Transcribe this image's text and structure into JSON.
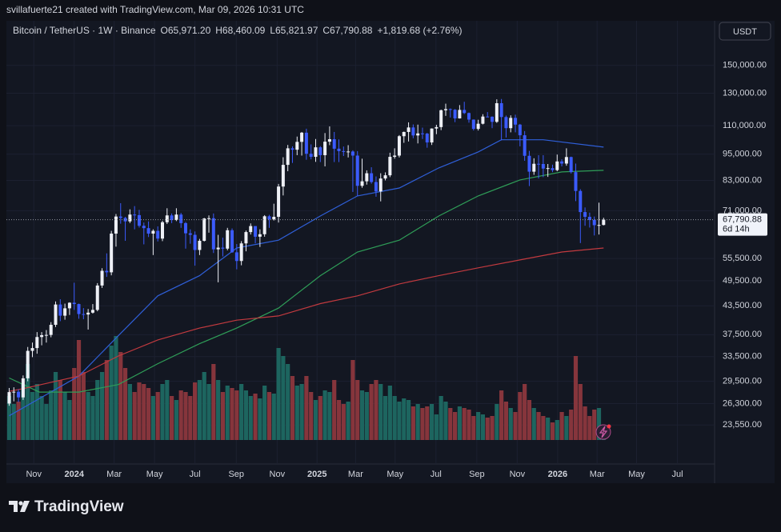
{
  "header": {
    "credit": "svillafuerte21 created with TradingView.com, Mar 09, 2026 10:31 UTC",
    "brand": "TradingView"
  },
  "chart_data": {
    "type": "candlestick",
    "symbol": "Bitcoin / TetherUS · 1W · Binance",
    "ohlc_text": [
      "O65,971.20",
      "H68,460.09",
      "L65,821.97",
      "C67,790.88",
      "+1,819.68 (+2.76%)"
    ],
    "currency": "USDT",
    "last_price_label": "67,790.88",
    "countdown": "6d 14h",
    "log_scale": true,
    "grid": true,
    "up_color": "#eef0f6",
    "down_color": "#3b5bfd",
    "volume_up_color": "#1d655f",
    "volume_down_color": "#86353c",
    "xlim": [
      -0.6,
      151.9
    ],
    "ylim": [
      21800,
      171000
    ],
    "xticks": [
      {
        "value": 5.3,
        "label": "Nov"
      },
      {
        "value": 14,
        "label": "2024"
      },
      {
        "value": 22.6,
        "label": "Mar"
      },
      {
        "value": 31.3,
        "label": "May"
      },
      {
        "value": 40,
        "label": "Jul"
      },
      {
        "value": 48.9,
        "label": "Sep"
      },
      {
        "value": 57.7,
        "label": "Nov"
      },
      {
        "value": 66.3,
        "label": "2025"
      },
      {
        "value": 74.6,
        "label": "Mar"
      },
      {
        "value": 83.1,
        "label": "May"
      },
      {
        "value": 91.9,
        "label": "Jul"
      },
      {
        "value": 100.7,
        "label": "Sep"
      },
      {
        "value": 109.4,
        "label": "Nov"
      },
      {
        "value": 118.1,
        "label": "2026"
      },
      {
        "value": 126.6,
        "label": "Mar"
      },
      {
        "value": 135.1,
        "label": "May"
      },
      {
        "value": 143.9,
        "label": "Jul"
      }
    ],
    "yticks": [
      {
        "value": 23550,
        "label": "23,550.00"
      },
      {
        "value": 26300,
        "label": "26,300.00"
      },
      {
        "value": 29500,
        "label": "29,500.00"
      },
      {
        "value": 33500,
        "label": "33,500.00"
      },
      {
        "value": 37500,
        "label": "37,500.00"
      },
      {
        "value": 43500,
        "label": "43,500.00"
      },
      {
        "value": 49500,
        "label": "49,500.00"
      },
      {
        "value": 55500,
        "label": "55,500.00"
      },
      {
        "value": 71000,
        "label": "71,000.00"
      },
      {
        "value": 83000,
        "label": "83,000.00"
      },
      {
        "value": 95000,
        "label": "95,000.00"
      },
      {
        "value": 110000,
        "label": "110,000.00"
      },
      {
        "value": 130000,
        "label": "130,000.00"
      },
      {
        "value": 150000,
        "label": "150,000.00"
      }
    ],
    "open": [
      26300,
      27900,
      27950,
      27150,
      29950,
      34500,
      35000,
      37050,
      37400,
      37450,
      39450,
      43800,
      41350,
      42950,
      44200,
      43900,
      41700,
      41600,
      42000,
      42600,
      48300,
      52100,
      51700,
      63100,
      68900,
      68400,
      67200,
      69600,
      69400,
      65700,
      64900,
      63100,
      64000,
      61500,
      66900,
      69300,
      67700,
      69600,
      66600,
      63200,
      62700,
      58000,
      60800,
      68200,
      68300,
      58200,
      58700,
      58400,
      64200,
      57300,
      54800,
      60000,
      63600,
      65600,
      62100,
      62900,
      69000,
      67900,
      68800,
      80400,
      89900,
      97900,
      97200,
      101200,
      106100,
      95200,
      93700,
      98400,
      94500,
      101300,
      102600,
      97700,
      96500,
      96100,
      96300,
      94300,
      80700,
      82600,
      86100,
      82300,
      78400,
      83800,
      85200,
      93700,
      94300,
      104200,
      106500,
      109000,
      104600,
      105700,
      105600,
      100900,
      108400,
      109200,
      119100,
      119800,
      119400,
      114200,
      119300,
      117400,
      113500,
      108200,
      111100,
      115300,
      115200,
      112200,
      123500,
      115000,
      108600,
      114500,
      110600,
      104700,
      94200,
      86800,
      90400,
      90300,
      88200,
      88400,
      87500,
      91500,
      90500,
      93600,
      86600,
      78600,
      70500,
      68800,
      67700,
      65900,
      65971.2
    ],
    "high": [
      28500,
      28600,
      28300,
      30400,
      35200,
      36000,
      38000,
      38000,
      38400,
      40000,
      44500,
      45000,
      44000,
      44300,
      49000,
      44000,
      43000,
      42800,
      43900,
      48900,
      52800,
      57000,
      64000,
      69800,
      73800,
      68800,
      71500,
      72700,
      71300,
      66800,
      67200,
      64500,
      65500,
      67400,
      71900,
      70000,
      71900,
      70200,
      67000,
      64500,
      63800,
      61400,
      68400,
      69300,
      70000,
      62700,
      61800,
      65000,
      64800,
      59800,
      60700,
      64100,
      66500,
      65000,
      64500,
      69400,
      69500,
      73600,
      81500,
      93500,
      99600,
      98900,
      104000,
      106500,
      108300,
      99900,
      102700,
      99000,
      105900,
      109600,
      106500,
      102500,
      98800,
      99500,
      96900,
      96500,
      92800,
      87400,
      88800,
      84700,
      86100,
      86500,
      95700,
      97900,
      104800,
      106700,
      111900,
      110700,
      110600,
      108900,
      106000,
      108500,
      110500,
      119500,
      123200,
      120200,
      119800,
      122300,
      124400,
      117700,
      113600,
      113400,
      116700,
      118000,
      115400,
      126000,
      126200,
      115900,
      116000,
      116400,
      111000,
      107000,
      96600,
      93000,
      94500,
      94500,
      90300,
      90000,
      94800,
      92500,
      97900,
      93800,
      90500,
      79300,
      72200,
      70300,
      68900,
      74000,
      68460.09
    ],
    "low": [
      26000,
      26600,
      26500,
      26800,
      29500,
      33400,
      34000,
      35500,
      36000,
      37000,
      39000,
      40200,
      40500,
      41500,
      42600,
      40700,
      40600,
      38500,
      41800,
      42300,
      47700,
      50500,
      50900,
      59000,
      66400,
      60800,
      66600,
      64500,
      65100,
      59700,
      62000,
      56500,
      60600,
      60700,
      66300,
      66600,
      67300,
      65000,
      58400,
      59900,
      53500,
      56500,
      60600,
      63400,
      57100,
      49100,
      56100,
      57900,
      57200,
      52500,
      53600,
      57600,
      62800,
      60000,
      58900,
      62100,
      65000,
      67500,
      66800,
      76800,
      87000,
      90800,
      94500,
      94300,
      92300,
      92500,
      91300,
      91200,
      89200,
      99500,
      91200,
      91200,
      94100,
      93400,
      78200,
      76600,
      79900,
      81200,
      81600,
      76300,
      74500,
      83000,
      84400,
      92800,
      93400,
      100700,
      101400,
      103100,
      100400,
      102700,
      98200,
      99600,
      105300,
      107500,
      115700,
      114700,
      112000,
      114100,
      116800,
      111700,
      107300,
      107300,
      110700,
      114800,
      108600,
      111600,
      102000,
      103500,
      106300,
      106300,
      98900,
      91800,
      80600,
      85400,
      83800,
      84400,
      84500,
      86600,
      87000,
      89200,
      89500,
      86000,
      74600,
      60100,
      65700,
      65100,
      62500,
      62800,
      65821.97
    ],
    "close": [
      27900,
      27950,
      27150,
      29950,
      34500,
      35000,
      37050,
      37400,
      37450,
      39450,
      43800,
      41350,
      42950,
      44200,
      43900,
      41700,
      41600,
      42000,
      42600,
      48300,
      52100,
      51700,
      63100,
      68900,
      68400,
      67200,
      69600,
      69400,
      65700,
      64900,
      63100,
      64000,
      61500,
      66900,
      69300,
      67700,
      69600,
      66600,
      63200,
      62700,
      58000,
      60800,
      68200,
      68300,
      58200,
      58700,
      58400,
      64200,
      57300,
      54800,
      60000,
      63600,
      65600,
      62100,
      62900,
      69000,
      67900,
      68800,
      80400,
      89900,
      97900,
      97200,
      101200,
      106100,
      95200,
      93700,
      98400,
      94500,
      101300,
      102600,
      97700,
      96500,
      96100,
      96300,
      94300,
      80700,
      82600,
      86100,
      82300,
      78400,
      83800,
      85200,
      93700,
      94300,
      104200,
      106500,
      109000,
      104600,
      105700,
      105600,
      100900,
      108400,
      109200,
      119100,
      119800,
      119400,
      114200,
      119300,
      117400,
      113500,
      108200,
      111100,
      115300,
      115200,
      112200,
      123500,
      115000,
      108600,
      114500,
      110600,
      104700,
      94200,
      86800,
      90400,
      90300,
      88200,
      88400,
      87500,
      91500,
      90500,
      93600,
      86600,
      78600,
      70500,
      68800,
      67700,
      65900,
      65971.2,
      67790.88
    ],
    "volume": [
      55,
      45,
      48,
      70,
      95,
      60,
      70,
      55,
      45,
      62,
      85,
      75,
      60,
      50,
      90,
      125,
      85,
      60,
      55,
      75,
      85,
      100,
      118,
      130,
      110,
      90,
      70,
      60,
      72,
      70,
      65,
      55,
      60,
      70,
      75,
      55,
      50,
      62,
      60,
      55,
      72,
      75,
      85,
      70,
      95,
      75,
      60,
      68,
      65,
      62,
      70,
      62,
      55,
      58,
      52,
      68,
      60,
      58,
      115,
      105,
      95,
      80,
      68,
      70,
      80,
      60,
      50,
      55,
      62,
      60,
      75,
      50,
      45,
      48,
      100,
      75,
      62,
      60,
      70,
      75,
      70,
      55,
      68,
      55,
      48,
      52,
      50,
      42,
      45,
      40,
      42,
      45,
      32,
      55,
      48,
      40,
      35,
      42,
      40,
      38,
      30,
      35,
      32,
      28,
      30,
      45,
      62,
      48,
      40,
      35,
      60,
      70,
      50,
      40,
      35,
      30,
      28,
      22,
      25,
      35,
      30,
      38,
      105,
      70,
      42,
      30,
      38,
      40,
      15
    ],
    "overlays": [
      {
        "color": "#2f5fd8",
        "x": [
          0,
          15,
          23.5,
          32,
          41,
          49,
          58,
          67,
          75,
          84,
          92.5,
          101,
          106,
          115,
          128
        ],
        "values": [
          24700,
          30300,
          37300,
          45800,
          50800,
          58600,
          61000,
          69100,
          76600,
          79800,
          88500,
          96100,
          102300,
          102300,
          98500
        ]
      },
      {
        "color": "#2f9e58",
        "x": [
          0,
          6.5,
          15,
          23.5,
          32,
          41,
          49,
          58,
          67,
          75,
          84,
          92.5,
          101,
          110,
          119,
          128
        ],
        "values": [
          30000,
          27900,
          27900,
          29000,
          32300,
          35800,
          38800,
          43000,
          50800,
          57400,
          61000,
          69100,
          76600,
          83200,
          86700,
          87400
        ]
      },
      {
        "color": "#c23a3f",
        "x": [
          0,
          3,
          15,
          23.5,
          32,
          41,
          49,
          58,
          67,
          75,
          84,
          92.5,
          101,
          110,
          119,
          128
        ],
        "values": [
          28000,
          28400,
          30300,
          33600,
          36500,
          38800,
          40400,
          41300,
          44000,
          45800,
          48700,
          50800,
          52900,
          55100,
          57400,
          58600
        ]
      }
    ]
  }
}
